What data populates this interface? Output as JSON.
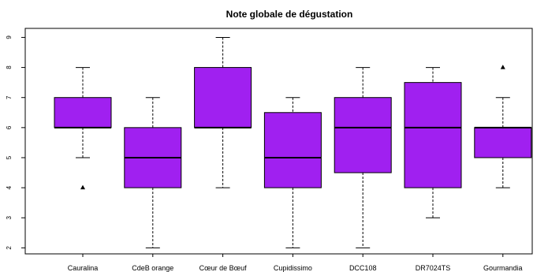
{
  "chart_data": {
    "type": "boxplot",
    "title": "Note globale de dégustation",
    "xlabel": "",
    "ylabel": "",
    "ylim": [
      1.8,
      9.3
    ],
    "y_ticks": [
      2,
      3,
      4,
      5,
      6,
      7,
      8,
      9
    ],
    "y_tick_labels": [
      "2",
      "3",
      "4",
      "5",
      "6",
      "7",
      "8",
      "9"
    ],
    "grid": false,
    "box_color": "#a020f0",
    "median_color": "#000000",
    "categories": [
      "Cauralina",
      "CdeB orange",
      "Cœur de Bœuf",
      "Cupidissimo",
      "DCC108",
      "DR7024TS",
      "Gourmandia"
    ],
    "boxes": [
      {
        "category": "Cauralina",
        "whisker_low": 5,
        "q1": 6,
        "median": 6,
        "q3": 7,
        "whisker_high": 8,
        "outliers": [
          4
        ]
      },
      {
        "category": "CdeB orange",
        "whisker_low": 2,
        "q1": 4,
        "median": 5,
        "q3": 6,
        "whisker_high": 7,
        "outliers": []
      },
      {
        "category": "Cœur de Bœuf",
        "whisker_low": 4,
        "q1": 6,
        "median": 6,
        "q3": 8,
        "whisker_high": 9,
        "outliers": []
      },
      {
        "category": "Cupidissimo",
        "whisker_low": 2,
        "q1": 4,
        "median": 5,
        "q3": 6.5,
        "whisker_high": 7,
        "outliers": []
      },
      {
        "category": "DCC108",
        "whisker_low": 2,
        "q1": 4.5,
        "median": 6,
        "q3": 7,
        "whisker_high": 8,
        "outliers": []
      },
      {
        "category": "DR7024TS",
        "whisker_low": 3,
        "q1": 4,
        "median": 6,
        "q3": 7.5,
        "whisker_high": 8,
        "outliers": []
      },
      {
        "category": "Gourmandia",
        "whisker_low": 4,
        "q1": 5,
        "median": 6,
        "q3": 6,
        "whisker_high": 7,
        "outliers": [
          8
        ]
      }
    ]
  }
}
